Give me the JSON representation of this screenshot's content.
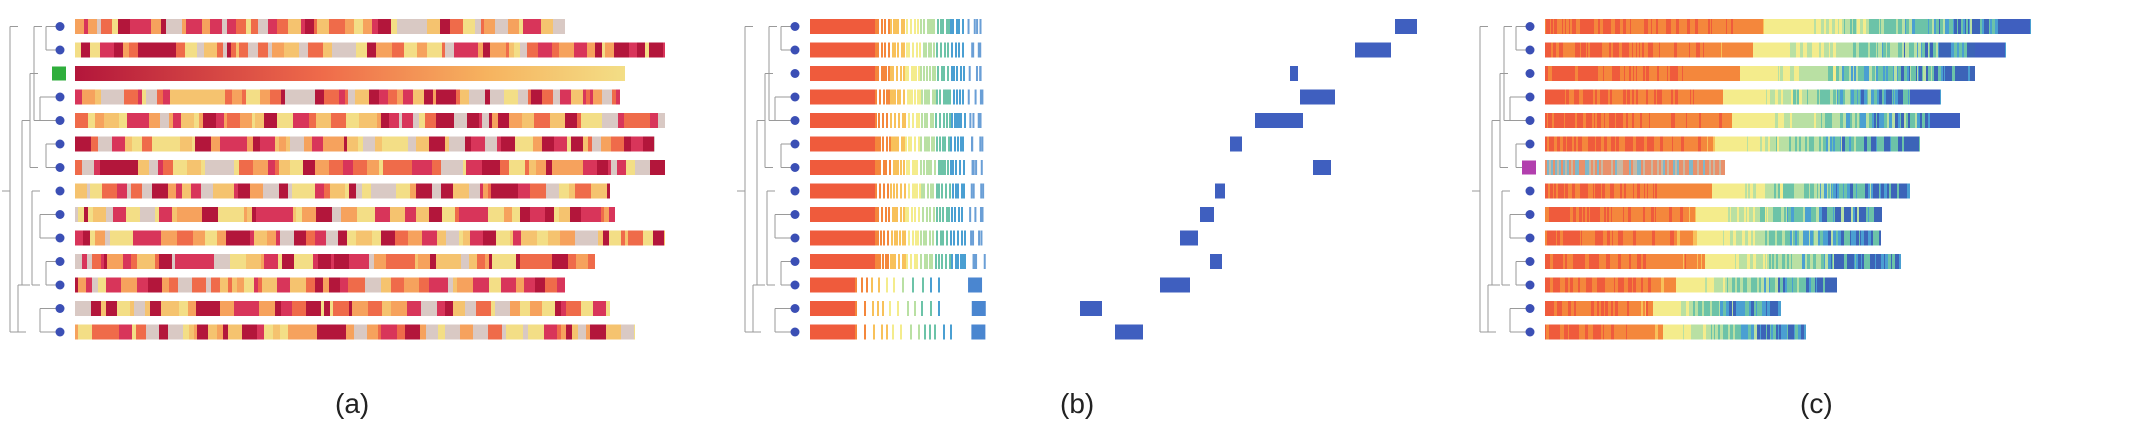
{
  "figure": {
    "panels": [
      {
        "label": "(a)",
        "style": "heat",
        "rows": 14,
        "highlight_row": 2,
        "highlight_color": "#2fae3c"
      },
      {
        "label": "(b)",
        "style": "sorted",
        "rows": 14
      },
      {
        "label": "(c)",
        "style": "spectrum",
        "rows": 14,
        "highlight_row": 6,
        "highlight_color": "#b23fae"
      }
    ],
    "colors": {
      "tree": "#9a9a9a",
      "node": "#3b4fb5",
      "block": "#3f5fbf",
      "heat": [
        "#b3163b",
        "#d8355a",
        "#ef6b4a",
        "#f6a25d",
        "#f5c36f",
        "#f3de86",
        "#d9c9c4"
      ],
      "spectrum": [
        "#ef5b3c",
        "#f4873c",
        "#f8c15a",
        "#f4ec8c",
        "#b9e0a3",
        "#6cc3a8",
        "#4a9fd2",
        "#3c64b8"
      ]
    }
  }
}
